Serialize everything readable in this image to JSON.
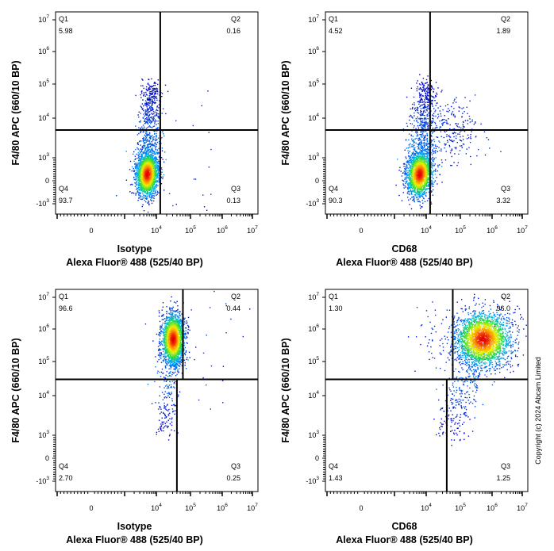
{
  "copyright": "Copyright (c) 2024 Abcam Limited",
  "chart_data": [
    {
      "type": "scatter",
      "subtype": "flow-cytometry-density-dot-plot",
      "xlabel": [
        "Isotype",
        "Alexa Fluor® 488  (525/40 BP)"
      ],
      "ylabel": "F4/80 APC (660/10 BP)",
      "x_scale": "biexponential",
      "y_scale": "biexponential",
      "xlim": [
        -1000,
        10000000
      ],
      "ylim": [
        -1000,
        10000000
      ],
      "x_ticks": [
        {
          "b": "0",
          "e": ""
        },
        {
          "b": "10",
          "e": "4"
        },
        {
          "b": "10",
          "e": "5"
        },
        {
          "b": "10",
          "e": "6"
        },
        {
          "b": "10",
          "e": "7"
        }
      ],
      "x_tick_values": [
        0,
        10000,
        100000,
        1000000,
        10000000
      ],
      "y_ticks": [
        {
          "b": "10",
          "e": "7"
        },
        {
          "b": "10",
          "e": "6"
        },
        {
          "b": "10",
          "e": "5"
        },
        {
          "b": "10",
          "e": "4"
        },
        {
          "b": "10",
          "e": "3"
        },
        {
          "b": "0",
          "e": ""
        },
        {
          "b": "-10",
          "e": "3"
        }
      ],
      "y_tick_values": [
        10000000,
        1000000,
        100000,
        10000,
        1000,
        0,
        -1000
      ],
      "gate": {
        "x_upper": 13000,
        "x_lower": 13000,
        "y": 5000
      },
      "quadrants": [
        {
          "name": "Q1",
          "percent": "5.98"
        },
        {
          "name": "Q2",
          "percent": "0.16"
        },
        {
          "name": "Q3",
          "percent": "0.13"
        },
        {
          "name": "Q4",
          "percent": "93.7"
        }
      ],
      "populations": [
        {
          "x": 5000,
          "y": 300,
          "tail_to_y": 100000
        }
      ]
    },
    {
      "type": "scatter",
      "subtype": "flow-cytometry-density-dot-plot",
      "xlabel": [
        "CD68",
        "Alexa Fluor® 488  (525/40 BP)"
      ],
      "ylabel": "F4/80 APC (660/10 BP)",
      "x_scale": "biexponential",
      "y_scale": "biexponential",
      "xlim": [
        -1000,
        10000000
      ],
      "ylim": [
        -1000,
        10000000
      ],
      "x_ticks": [
        {
          "b": "0",
          "e": ""
        },
        {
          "b": "10",
          "e": "4"
        },
        {
          "b": "10",
          "e": "5"
        },
        {
          "b": "10",
          "e": "6"
        },
        {
          "b": "10",
          "e": "7"
        }
      ],
      "x_tick_values": [
        0,
        10000,
        100000,
        1000000,
        10000000
      ],
      "y_ticks": [
        {
          "b": "10",
          "e": "7"
        },
        {
          "b": "10",
          "e": "6"
        },
        {
          "b": "10",
          "e": "5"
        },
        {
          "b": "10",
          "e": "4"
        },
        {
          "b": "10",
          "e": "3"
        },
        {
          "b": "0",
          "e": ""
        },
        {
          "b": "-10",
          "e": "3"
        }
      ],
      "y_tick_values": [
        10000000,
        1000000,
        100000,
        10000,
        1000,
        0,
        -1000
      ],
      "gate": {
        "x_upper": 13000,
        "x_lower": 13000,
        "y": 5000
      },
      "quadrants": [
        {
          "name": "Q1",
          "percent": "4.52"
        },
        {
          "name": "Q2",
          "percent": "1.89"
        },
        {
          "name": "Q3",
          "percent": "3.32"
        },
        {
          "name": "Q4",
          "percent": "90.3"
        }
      ],
      "populations": [
        {
          "x": 6000,
          "y": 300,
          "tail_to_y": 100000
        }
      ]
    },
    {
      "type": "scatter",
      "subtype": "flow-cytometry-density-dot-plot",
      "xlabel": [
        "Isotype",
        "Alexa Fluor® 488  (525/40 BP)"
      ],
      "ylabel": "F4/80 APC (660/10 BP)",
      "x_scale": "biexponential",
      "y_scale": "biexponential",
      "xlim": [
        -1000,
        10000000
      ],
      "ylim": [
        -1000,
        10000000
      ],
      "x_ticks": [
        {
          "b": "0",
          "e": ""
        },
        {
          "b": "10",
          "e": "4"
        },
        {
          "b": "10",
          "e": "5"
        },
        {
          "b": "10",
          "e": "6"
        },
        {
          "b": "10",
          "e": "7"
        }
      ],
      "x_tick_values": [
        0,
        10000,
        100000,
        1000000,
        10000000
      ],
      "y_ticks": [
        {
          "b": "10",
          "e": "7"
        },
        {
          "b": "10",
          "e": "6"
        },
        {
          "b": "10",
          "e": "5"
        },
        {
          "b": "10",
          "e": "4"
        },
        {
          "b": "10",
          "e": "3"
        },
        {
          "b": "0",
          "e": ""
        },
        {
          "b": "-10",
          "e": "3"
        }
      ],
      "y_tick_values": [
        10000000,
        1000000,
        100000,
        10000,
        1000,
        0,
        -1000
      ],
      "gate": {
        "x_upper": 60000,
        "x_lower": 40000,
        "y": 30000
      },
      "quadrants": [
        {
          "name": "Q1",
          "percent": "96.6"
        },
        {
          "name": "Q2",
          "percent": "0.44"
        },
        {
          "name": "Q3",
          "percent": "0.25"
        },
        {
          "name": "Q4",
          "percent": "2.70"
        }
      ],
      "populations": [
        {
          "x": 30000,
          "y": 500000,
          "tail_to_y": 1000
        }
      ]
    },
    {
      "type": "scatter",
      "subtype": "flow-cytometry-density-dot-plot",
      "xlabel": [
        "CD68",
        "Alexa Fluor® 488  (525/40 BP)"
      ],
      "ylabel": "F4/80 APC (660/10 BP)",
      "x_scale": "biexponential",
      "y_scale": "biexponential",
      "xlim": [
        -1000,
        10000000
      ],
      "ylim": [
        -1000,
        10000000
      ],
      "x_ticks": [
        {
          "b": "0",
          "e": ""
        },
        {
          "b": "10",
          "e": "4"
        },
        {
          "b": "10",
          "e": "5"
        },
        {
          "b": "10",
          "e": "6"
        },
        {
          "b": "10",
          "e": "7"
        }
      ],
      "x_tick_values": [
        0,
        10000,
        100000,
        1000000,
        10000000
      ],
      "y_ticks": [
        {
          "b": "10",
          "e": "7"
        },
        {
          "b": "10",
          "e": "6"
        },
        {
          "b": "10",
          "e": "5"
        },
        {
          "b": "10",
          "e": "4"
        },
        {
          "b": "10",
          "e": "3"
        },
        {
          "b": "0",
          "e": ""
        },
        {
          "b": "-10",
          "e": "3"
        }
      ],
      "y_tick_values": [
        10000000,
        1000000,
        100000,
        10000,
        1000,
        0,
        -1000
      ],
      "gate": {
        "x_upper": 60000,
        "x_lower": 40000,
        "y": 30000
      },
      "quadrants": [
        {
          "name": "Q1",
          "percent": "1.30"
        },
        {
          "name": "Q2",
          "percent": "96.0"
        },
        {
          "name": "Q3",
          "percent": "1.25"
        },
        {
          "name": "Q4",
          "percent": "1.43"
        }
      ],
      "populations": [
        {
          "x": 500000,
          "y": 500000,
          "tail_to_y": 1000
        }
      ]
    }
  ]
}
